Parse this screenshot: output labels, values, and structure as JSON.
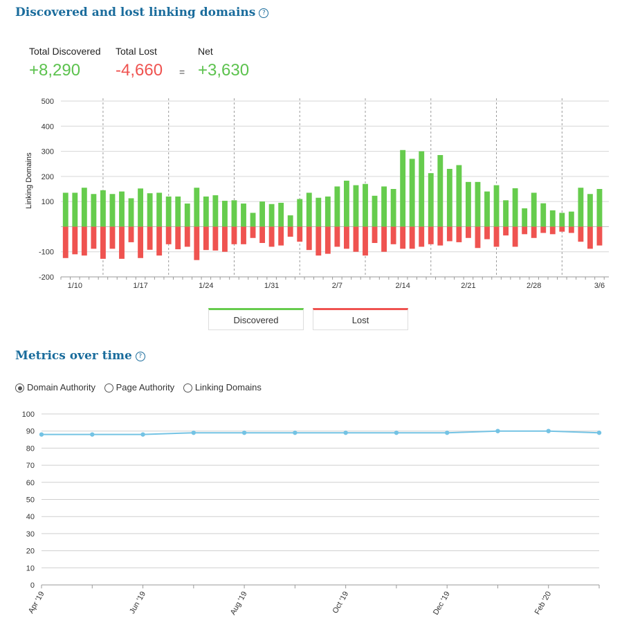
{
  "section1": {
    "title": "Discovered and lost linking domains",
    "help_icon": "?",
    "stats": {
      "discovered_label": "Total Discovered",
      "discovered_value": "+8,290",
      "lost_label": "Total Lost",
      "lost_value": "-4,660",
      "equals": "=",
      "net_label": "Net",
      "net_value": "+3,630"
    },
    "legend": {
      "discovered": "Discovered",
      "lost": "Lost"
    }
  },
  "section2": {
    "title": "Metrics over time",
    "help_icon": "?",
    "radios": [
      {
        "label": "Domain Authority",
        "selected": true
      },
      {
        "label": "Page Authority",
        "selected": false
      },
      {
        "label": "Linking Domains",
        "selected": false
      }
    ]
  },
  "colors": {
    "discovered": "#66cc4d",
    "lost": "#ef5350",
    "line": "#74c3e4",
    "title": "#1a6c9c"
  },
  "chart_data": [
    {
      "type": "bar",
      "ylabel": "Linking Domains",
      "ylim": [
        -200,
        500
      ],
      "yticks": [
        500,
        400,
        300,
        200,
        100,
        -100,
        -200
      ],
      "x_tick_labels": [
        "1/10",
        "1/17",
        "1/24",
        "1/31",
        "2/7",
        "2/14",
        "2/21",
        "2/28",
        "3/6"
      ],
      "x_tick_index": [
        1,
        8,
        15,
        22,
        29,
        36,
        43,
        50,
        57
      ],
      "grid": true,
      "series": [
        {
          "name": "Discovered",
          "values": [
            135,
            135,
            155,
            130,
            145,
            130,
            140,
            113,
            152,
            133,
            135,
            120,
            120,
            92,
            155,
            120,
            125,
            103,
            105,
            92,
            55,
            100,
            90,
            95,
            45,
            110,
            135,
            115,
            120,
            160,
            183,
            165,
            170,
            123,
            160,
            150,
            305,
            270,
            300,
            213,
            285,
            230,
            245,
            178,
            178,
            140,
            165,
            105,
            153,
            73,
            135,
            93,
            65,
            55,
            60,
            155,
            130,
            150
          ]
        },
        {
          "name": "Lost",
          "values": [
            -125,
            -110,
            -115,
            -88,
            -128,
            -88,
            -128,
            -62,
            -125,
            -92,
            -115,
            -70,
            -90,
            -80,
            -133,
            -93,
            -95,
            -100,
            -70,
            -70,
            -45,
            -65,
            -80,
            -75,
            -40,
            -60,
            -93,
            -115,
            -108,
            -80,
            -88,
            -100,
            -115,
            -65,
            -100,
            -70,
            -88,
            -88,
            -80,
            -70,
            -75,
            -58,
            -62,
            -45,
            -85,
            -50,
            -80,
            -35,
            -80,
            -30,
            -45,
            -25,
            -30,
            -20,
            -25,
            -60,
            -88,
            -75
          ]
        }
      ]
    },
    {
      "type": "line",
      "ylim": [
        0,
        100
      ],
      "yticks": [
        100,
        90,
        80,
        70,
        60,
        50,
        40,
        30,
        20,
        10,
        0
      ],
      "x_tick_labels": [
        "Apr '19",
        "Jun '19",
        "Aug '19",
        "Oct '19",
        "Dec '19",
        "Feb '20"
      ],
      "grid": true,
      "series": [
        {
          "name": "Domain Authority",
          "values": [
            88,
            88,
            88,
            89,
            89,
            89,
            89,
            89,
            89,
            90,
            90,
            89
          ]
        }
      ]
    }
  ]
}
